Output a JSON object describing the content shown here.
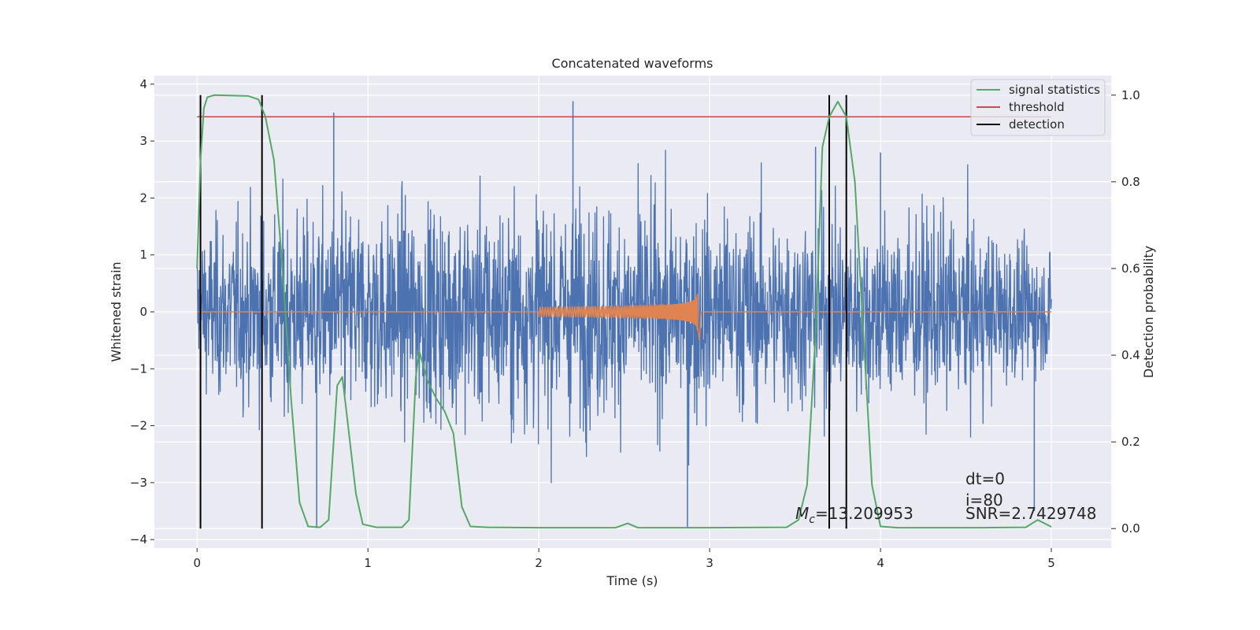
{
  "chart_data": {
    "type": "line",
    "title": "Concatenated waveforms",
    "xlabel": "Time (s)",
    "ylabel": "Whitened strain",
    "ylabel_right": "Detection probability",
    "xlim": [
      -0.25,
      5.35
    ],
    "ylim": [
      -4.15,
      4.15
    ],
    "ylim_right": [
      -0.045,
      1.045
    ],
    "x_ticks": [
      0,
      1,
      2,
      3,
      4,
      5
    ],
    "y_ticks": [
      -4,
      -3,
      -2,
      -1,
      0,
      1,
      2,
      3,
      4
    ],
    "y_ticks_right": [
      0.0,
      0.2,
      0.4,
      0.6,
      0.8,
      1.0
    ],
    "y_tick_labels_right": [
      "0.0",
      "0.2",
      "0.4",
      "0.6",
      "0.8",
      "1.0"
    ],
    "grid": true,
    "background": "#EAEAF2",
    "legend_position": "top-right",
    "series": [
      {
        "name": "",
        "axis": "left",
        "color": "#4C72B0",
        "kind": "whitened noise",
        "x_range": [
          0,
          5
        ],
        "envelope_upper_approx": [
          [
            0.0,
            2.0
          ],
          [
            0.5,
            2.4
          ],
          [
            1.0,
            2.5
          ],
          [
            1.5,
            2.6
          ],
          [
            2.0,
            2.7
          ],
          [
            2.5,
            2.6
          ],
          [
            3.0,
            2.5
          ],
          [
            3.5,
            2.4
          ],
          [
            4.0,
            2.3
          ],
          [
            4.5,
            2.3
          ],
          [
            5.0,
            1.3
          ]
        ],
        "spikes": [
          [
            0.8,
            3.5
          ],
          [
            2.2,
            3.7
          ],
          [
            2.87,
            -3.8
          ],
          [
            0.7,
            -3.8
          ],
          [
            4.9,
            -3.5
          ],
          [
            3.62,
            2.9
          ],
          [
            4.0,
            2.8
          ]
        ]
      },
      {
        "name": "",
        "axis": "left",
        "color": "#DD8452",
        "kind": "chirp",
        "start_time": 2.0,
        "merger_time": 2.93,
        "peak_amplitude": 0.4,
        "x_range": [
          0,
          5
        ]
      },
      {
        "name": "signal statistics",
        "axis": "right",
        "color": "#55A868",
        "points": [
          [
            0.0,
            0.6
          ],
          [
            0.02,
            0.85
          ],
          [
            0.04,
            0.97
          ],
          [
            0.06,
            0.995
          ],
          [
            0.1,
            1.0
          ],
          [
            0.3,
            0.998
          ],
          [
            0.36,
            0.99
          ],
          [
            0.4,
            0.95
          ],
          [
            0.45,
            0.85
          ],
          [
            0.5,
            0.6
          ],
          [
            0.55,
            0.3
          ],
          [
            0.6,
            0.06
          ],
          [
            0.65,
            0.005
          ],
          [
            0.72,
            0.003
          ],
          [
            0.77,
            0.02
          ],
          [
            0.82,
            0.33
          ],
          [
            0.85,
            0.35
          ],
          [
            0.88,
            0.25
          ],
          [
            0.93,
            0.08
          ],
          [
            0.97,
            0.01
          ],
          [
            1.05,
            0.003
          ],
          [
            1.2,
            0.003
          ],
          [
            1.24,
            0.02
          ],
          [
            1.28,
            0.35
          ],
          [
            1.3,
            0.41
          ],
          [
            1.35,
            0.34
          ],
          [
            1.4,
            0.3
          ],
          [
            1.45,
            0.27
          ],
          [
            1.5,
            0.22
          ],
          [
            1.55,
            0.05
          ],
          [
            1.6,
            0.005
          ],
          [
            1.7,
            0.003
          ],
          [
            2.0,
            0.002
          ],
          [
            2.45,
            0.002
          ],
          [
            2.52,
            0.012
          ],
          [
            2.58,
            0.002
          ],
          [
            3.0,
            0.002
          ],
          [
            3.45,
            0.003
          ],
          [
            3.52,
            0.02
          ],
          [
            3.57,
            0.1
          ],
          [
            3.62,
            0.45
          ],
          [
            3.66,
            0.88
          ],
          [
            3.7,
            0.95
          ],
          [
            3.75,
            0.985
          ],
          [
            3.8,
            0.95
          ],
          [
            3.85,
            0.8
          ],
          [
            3.9,
            0.45
          ],
          [
            3.95,
            0.1
          ],
          [
            4.0,
            0.005
          ],
          [
            4.1,
            0.002
          ],
          [
            4.6,
            0.002
          ],
          [
            4.85,
            0.003
          ],
          [
            4.92,
            0.02
          ],
          [
            5.0,
            0.004
          ]
        ]
      },
      {
        "name": "threshold",
        "axis": "right",
        "color": "#C44E52",
        "value": 0.95,
        "x_range": [
          0,
          5
        ]
      },
      {
        "name": "detection",
        "axis": "right",
        "color": "#000000",
        "x_lines": [
          0.02,
          0.38,
          3.7,
          3.8
        ],
        "y_range": [
          0.0,
          1.0
        ]
      }
    ],
    "annotations": [
      {
        "id": "mc",
        "text": "=13.209953",
        "prefix_symbol": "M",
        "prefix_subscript": "c",
        "x": 3.5,
        "y": -3.6
      },
      {
        "id": "dt",
        "text": "dt=0",
        "x": 4.5,
        "y": -3.0
      },
      {
        "id": "i",
        "text": "i=80",
        "x": 4.5,
        "y": -3.3
      },
      {
        "id": "snr",
        "text": "SNR=2.7429748",
        "x": 4.5,
        "y": -3.6
      }
    ]
  }
}
